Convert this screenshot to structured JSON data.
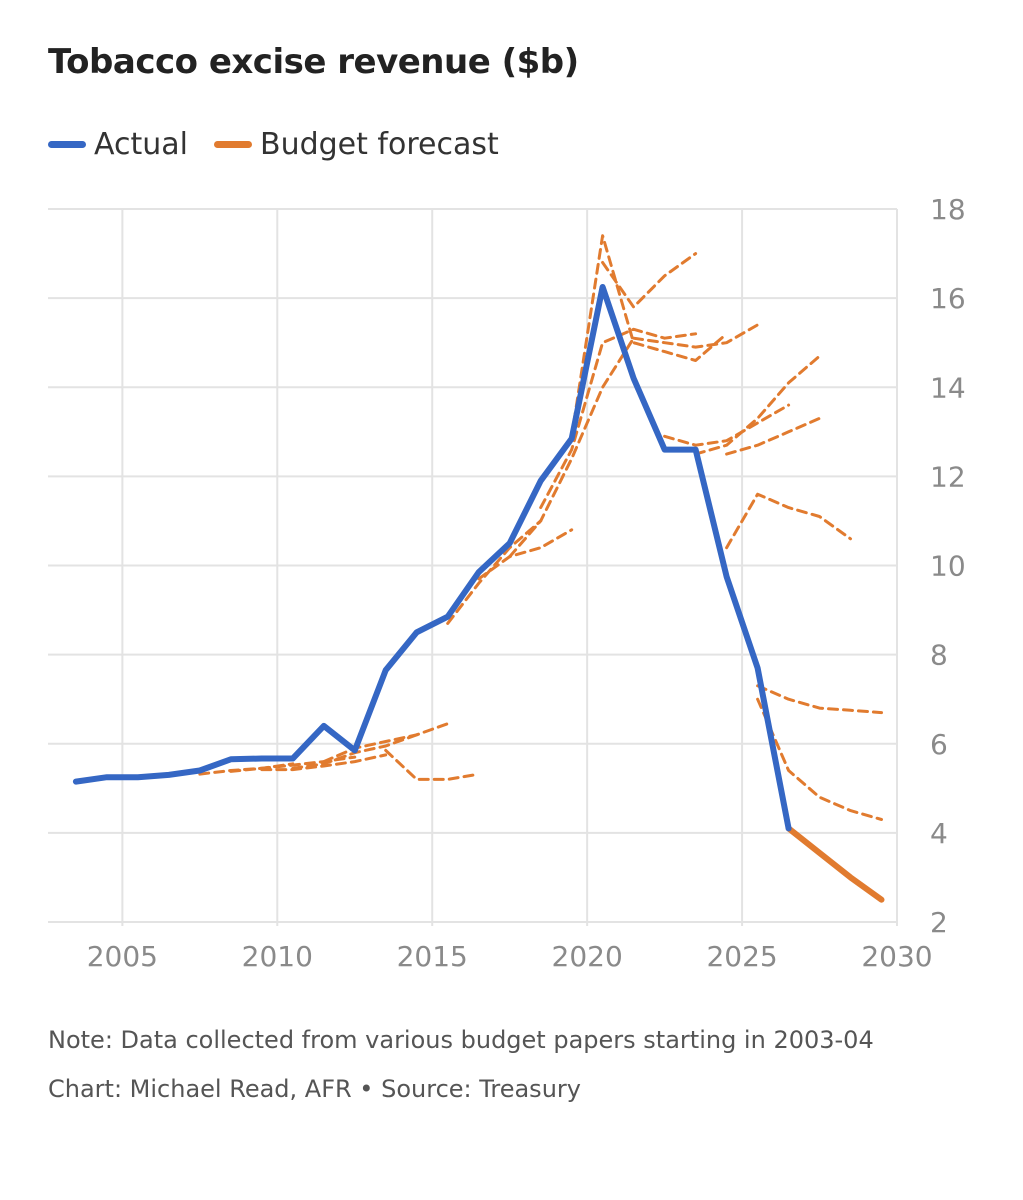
{
  "chart_data": {
    "type": "line",
    "title": "Tobacco excise revenue ($b)",
    "xlabel": "",
    "ylabel": "",
    "xlim": [
      2002.6,
      2030
    ],
    "ylim": [
      2,
      18
    ],
    "x_ticks": [
      2005,
      2010,
      2015,
      2020,
      2025,
      2030
    ],
    "y_ticks": [
      2,
      4,
      6,
      8,
      10,
      12,
      14,
      16,
      18
    ],
    "grid": true,
    "y_axis_side": "right",
    "legend_position": "top-left",
    "legend": [
      {
        "label": "Actual",
        "color": "#3567c4"
      },
      {
        "label": "Budget forecast",
        "color": "#e17b2f"
      }
    ],
    "actual": {
      "name": "Actual",
      "color": "#3567c4",
      "x": [
        2003.5,
        2004.5,
        2005.5,
        2006.5,
        2007.5,
        2008.5,
        2009.5,
        2010.5,
        2011.5,
        2012.5,
        2013.5,
        2014.5,
        2015.5,
        2016.5,
        2017.5,
        2018.5,
        2019.5,
        2020.5,
        2021.5,
        2022.5,
        2023.5,
        2024.5,
        2025.5,
        2026.5
      ],
      "y": [
        5.15,
        5.25,
        5.25,
        5.3,
        5.4,
        5.65,
        5.67,
        5.67,
        6.4,
        5.85,
        7.65,
        8.5,
        8.85,
        9.85,
        10.5,
        11.9,
        12.85,
        16.25,
        14.2,
        12.6,
        12.6,
        9.75,
        7.7,
        4.1
      ]
    },
    "budget_forecast": {
      "name": "Budget forecast",
      "color": "#e17b2f",
      "x": [
        2026.5,
        2027.5,
        2028.5,
        2029.5
      ],
      "y": [
        4.1,
        3.55,
        3.0,
        2.5
      ]
    },
    "past_forecasts": [
      {
        "x": [
          2007.5,
          2008.5,
          2009.5,
          2010.5
        ],
        "y": [
          5.32,
          5.4,
          5.45,
          5.55
        ]
      },
      {
        "x": [
          2008.5,
          2009.5,
          2010.5,
          2011.5,
          2012.5
        ],
        "y": [
          5.38,
          5.45,
          5.52,
          5.6,
          5.7
        ]
      },
      {
        "x": [
          2009.5,
          2010.5,
          2011.5,
          2012.5,
          2013.5
        ],
        "y": [
          5.42,
          5.42,
          5.5,
          5.6,
          5.75
        ]
      },
      {
        "x": [
          2010.5,
          2011.5,
          2012.5,
          2013.5,
          2014.5
        ],
        "y": [
          5.45,
          5.55,
          5.8,
          5.95,
          6.2
        ]
      },
      {
        "x": [
          2011.5,
          2012.5,
          2013.5,
          2014.5,
          2015.5
        ],
        "y": [
          5.6,
          5.9,
          6.05,
          6.2,
          6.45
        ]
      },
      {
        "x": [
          2013.5,
          2014.5,
          2015.5,
          2016.5
        ],
        "y": [
          5.85,
          5.2,
          5.2,
          5.32
        ]
      },
      {
        "x": [
          2015.5,
          2016.5,
          2017.5,
          2018.5
        ],
        "y": [
          8.7,
          9.6,
          10.4,
          11.0
        ]
      },
      {
        "x": [
          2016.5,
          2017.5,
          2018.5,
          2019.5
        ],
        "y": [
          9.7,
          10.2,
          10.4,
          10.8
        ]
      },
      {
        "x": [
          2017.5,
          2018.5,
          2019.5,
          2020.5,
          2021.5
        ],
        "y": [
          10.2,
          11.0,
          12.4,
          14.0,
          15.1
        ]
      },
      {
        "x": [
          2018.5,
          2019.5,
          2020.5,
          2021.5,
          2022.5,
          2023.5
        ],
        "y": [
          11.3,
          12.6,
          15.0,
          15.3,
          15.1,
          15.2
        ]
      },
      {
        "x": [
          2019.5,
          2020.5,
          2021.5,
          2022.5,
          2023.5,
          2024.5
        ],
        "y": [
          12.9,
          17.4,
          15.0,
          14.8,
          14.6,
          15.2
        ]
      },
      {
        "x": [
          2020.5,
          2021.5,
          2022.5,
          2023.5
        ],
        "y": [
          16.8,
          15.8,
          16.5,
          17.0
        ]
      },
      {
        "x": [
          2021.5,
          2022.5,
          2023.5,
          2024.5,
          2025.5
        ],
        "y": [
          15.1,
          15.0,
          14.9,
          15.0,
          15.4
        ]
      },
      {
        "x": [
          2022.5,
          2023.5,
          2024.5,
          2025.5,
          2026.5
        ],
        "y": [
          12.9,
          12.7,
          12.8,
          13.2,
          13.6
        ]
      },
      {
        "x": [
          2023.5,
          2024.5,
          2025.5,
          2026.5,
          2027.5
        ],
        "y": [
          12.5,
          12.7,
          13.3,
          14.1,
          14.7
        ]
      },
      {
        "x": [
          2024.5,
          2025.5,
          2026.5,
          2027.5
        ],
        "y": [
          12.5,
          12.7,
          13.0,
          13.3
        ]
      },
      {
        "x": [
          2024.5,
          2025.5,
          2026.5,
          2027.5,
          2028.5
        ],
        "y": [
          10.4,
          11.6,
          11.3,
          11.1,
          10.6
        ]
      },
      {
        "x": [
          2025.5,
          2026.5,
          2027.5,
          2028.5,
          2029.5
        ],
        "y": [
          7.3,
          7.0,
          6.8,
          6.75,
          6.7
        ]
      },
      {
        "x": [
          2025.5,
          2026.5,
          2027.5,
          2028.5,
          2029.5
        ],
        "y": [
          7.0,
          5.4,
          4.8,
          4.5,
          4.3
        ]
      }
    ]
  },
  "note": "Note: Data collected from various budget papers starting in 2003-04",
  "credit": "Chart: Michael Read, AFR • Source: Treasury"
}
